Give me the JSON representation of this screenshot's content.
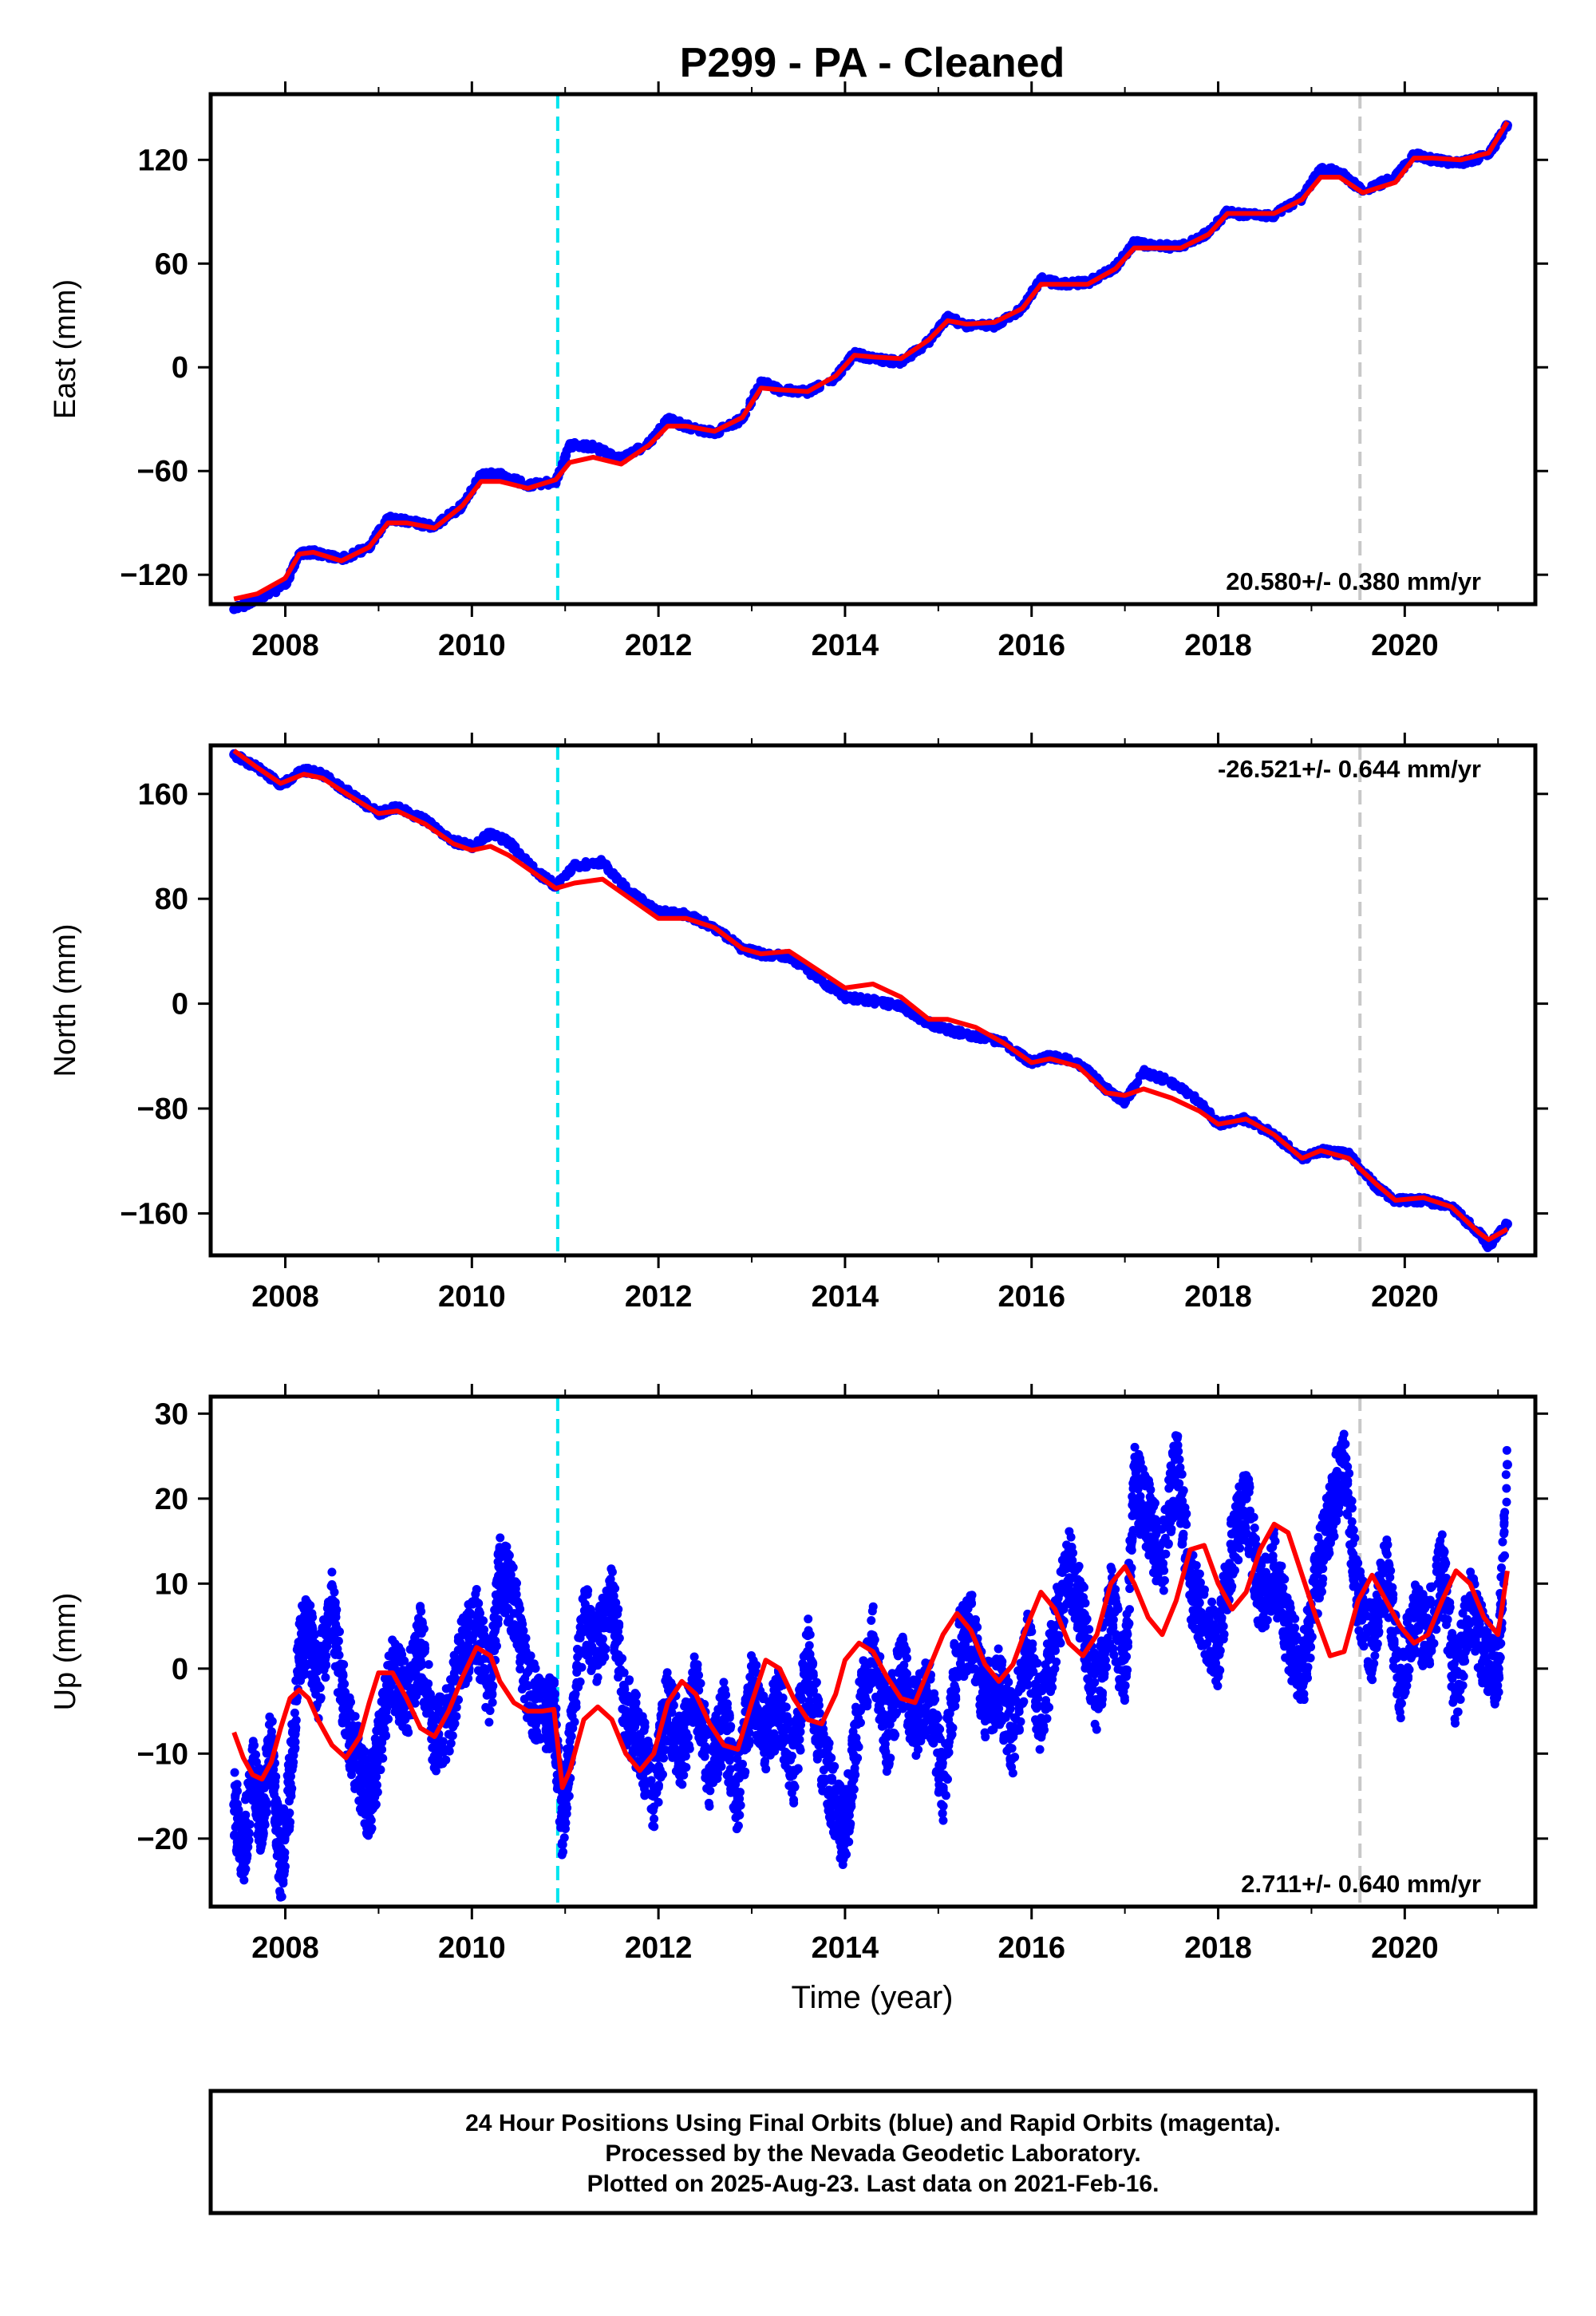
{
  "figure": {
    "title": "P299  - PA - Cleaned",
    "xlabel": "Time (year)",
    "footer": [
      "24 Hour Positions Using Final Orbits (blue) and Rapid Orbits (magenta).",
      "Processed by the Nevada Geodetic Laboratory.",
      "Plotted on 2025-Aug-23. Last data on 2021-Feb-16."
    ]
  },
  "colors": {
    "data": "#0000ff",
    "model": "#ff0000",
    "equipment_change": "#00e5ee",
    "event_line": "#c8c8c8",
    "frame": "#000000"
  },
  "chart_data": [
    {
      "type": "scatter",
      "name": "east",
      "ylabel": "East (mm)",
      "rate_label": "20.580+/- 0.380 mm/yr",
      "rate_position": "bottom-right",
      "xlim": [
        2007.2,
        2021.4
      ],
      "ylim": [
        -137,
        158
      ],
      "xticks": [
        2008,
        2010,
        2012,
        2014,
        2016,
        2018,
        2020
      ],
      "yticks": [
        -120,
        -60,
        0,
        60,
        120
      ],
      "vlines": [
        {
          "x": 2010.92,
          "style": "cyan-dashed"
        },
        {
          "x": 2019.52,
          "style": "gray-dashed"
        }
      ],
      "series": [
        {
          "name": "Final Orbits",
          "kind": "points",
          "x": [
            2007.45,
            2007.7,
            2008.0,
            2008.15,
            2008.3,
            2008.6,
            2008.9,
            2009.1,
            2009.3,
            2009.6,
            2009.9,
            2010.1,
            2010.3,
            2010.6,
            2010.9,
            2011.05,
            2011.3,
            2011.6,
            2011.9,
            2012.1,
            2012.3,
            2012.6,
            2012.9,
            2013.1,
            2013.3,
            2013.6,
            2013.9,
            2014.1,
            2014.3,
            2014.6,
            2014.9,
            2015.1,
            2015.3,
            2015.6,
            2015.9,
            2016.1,
            2016.3,
            2016.6,
            2016.9,
            2017.1,
            2017.3,
            2017.6,
            2017.9,
            2018.1,
            2018.3,
            2018.6,
            2018.9,
            2019.1,
            2019.3,
            2019.55,
            2019.9,
            2020.1,
            2020.3,
            2020.6,
            2020.9,
            2021.1
          ],
          "y": [
            -140,
            -134,
            -126,
            -108,
            -107,
            -111,
            -104,
            -87,
            -89,
            -92,
            -80,
            -62,
            -62,
            -68,
            -66,
            -45,
            -46,
            -53,
            -44,
            -30,
            -34,
            -38,
            -30,
            -8,
            -13,
            -14,
            -6,
            8,
            5,
            3,
            15,
            29,
            24,
            24,
            34,
            51,
            48,
            49,
            58,
            72,
            70,
            70,
            78,
            90,
            88,
            88,
            98,
            115,
            113,
            102,
            110,
            123,
            120,
            118,
            123,
            140
          ]
        },
        {
          "name": "Model",
          "kind": "line",
          "x": [
            2007.45,
            2007.7,
            2008.0,
            2008.15,
            2008.3,
            2008.6,
            2008.9,
            2009.1,
            2009.3,
            2009.6,
            2009.9,
            2010.1,
            2010.3,
            2010.6,
            2010.9,
            2011.05,
            2011.3,
            2011.6,
            2011.9,
            2012.1,
            2012.3,
            2012.6,
            2012.9,
            2013.1,
            2013.3,
            2013.6,
            2013.9,
            2014.1,
            2014.3,
            2014.6,
            2014.9,
            2015.1,
            2015.3,
            2015.6,
            2015.9,
            2016.1,
            2016.3,
            2016.6,
            2016.9,
            2017.1,
            2017.3,
            2017.6,
            2017.9,
            2018.1,
            2018.3,
            2018.6,
            2018.9,
            2019.1,
            2019.3,
            2019.55,
            2019.9,
            2020.1,
            2020.3,
            2020.6,
            2020.9,
            2021.1
          ],
          "y": [
            -134,
            -131,
            -122,
            -108,
            -107,
            -112,
            -104,
            -90,
            -90,
            -93,
            -80,
            -66,
            -66,
            -70,
            -65,
            -55,
            -52,
            -56,
            -45,
            -34,
            -34,
            -37,
            -29,
            -12,
            -13,
            -14,
            -5,
            7,
            6,
            5,
            16,
            27,
            25,
            26,
            34,
            48,
            48,
            48,
            57,
            69,
            69,
            69,
            77,
            89,
            89,
            89,
            97,
            110,
            110,
            101,
            107,
            121,
            121,
            120,
            124,
            142
          ]
        }
      ]
    },
    {
      "type": "scatter",
      "name": "north",
      "ylabel": "North (mm)",
      "rate_label": "-26.521+/- 0.644 mm/yr",
      "rate_position": "top-right",
      "xlim": [
        2007.2,
        2021.4
      ],
      "ylim": [
        -192,
        197
      ],
      "xticks": [
        2008,
        2010,
        2012,
        2014,
        2016,
        2018,
        2020
      ],
      "yticks": [
        -160,
        -80,
        0,
        80,
        160
      ],
      "vlines": [
        {
          "x": 2010.92,
          "style": "cyan-dashed"
        },
        {
          "x": 2019.52,
          "style": "gray-dashed"
        }
      ],
      "series": [
        {
          "name": "Final Orbits",
          "kind": "points",
          "x": [
            2007.45,
            2007.7,
            2007.95,
            2008.2,
            2008.4,
            2008.7,
            2009.0,
            2009.2,
            2009.5,
            2009.8,
            2010.0,
            2010.2,
            2010.4,
            2010.7,
            2010.9,
            2011.1,
            2011.4,
            2011.7,
            2012.0,
            2012.3,
            2012.6,
            2012.9,
            2013.1,
            2013.4,
            2013.7,
            2014.0,
            2014.3,
            2014.6,
            2014.9,
            2015.1,
            2015.4,
            2015.7,
            2016.0,
            2016.2,
            2016.5,
            2016.8,
            2017.0,
            2017.2,
            2017.5,
            2017.8,
            2018.0,
            2018.3,
            2018.6,
            2018.9,
            2019.1,
            2019.4,
            2019.7,
            2019.9,
            2020.2,
            2020.5,
            2020.8,
            2020.9,
            2021.1
          ],
          "y": [
            190,
            180,
            167,
            178,
            175,
            160,
            145,
            150,
            140,
            124,
            120,
            130,
            123,
            100,
            90,
            105,
            108,
            85,
            70,
            68,
            58,
            42,
            38,
            36,
            20,
            5,
            2,
            -2,
            -15,
            -20,
            -25,
            -30,
            -45,
            -40,
            -45,
            -65,
            -75,
            -52,
            -60,
            -75,
            -92,
            -88,
            -100,
            -118,
            -112,
            -115,
            -140,
            -150,
            -150,
            -155,
            -175,
            -185,
            -168
          ]
        },
        {
          "name": "Model",
          "kind": "line",
          "x": [
            2007.45,
            2007.7,
            2007.95,
            2008.2,
            2008.4,
            2008.7,
            2009.0,
            2009.2,
            2009.5,
            2009.8,
            2010.0,
            2010.2,
            2010.4,
            2010.7,
            2010.9,
            2011.1,
            2011.4,
            2011.7,
            2012.0,
            2012.3,
            2012.6,
            2012.9,
            2013.1,
            2013.4,
            2013.7,
            2014.0,
            2014.3,
            2014.6,
            2014.9,
            2015.1,
            2015.4,
            2015.7,
            2016.0,
            2016.2,
            2016.5,
            2016.8,
            2017.0,
            2017.2,
            2017.5,
            2017.8,
            2018.0,
            2018.3,
            2018.6,
            2018.9,
            2019.1,
            2019.4,
            2019.7,
            2019.9,
            2020.2,
            2020.5,
            2020.8,
            2020.9,
            2021.1
          ],
          "y": [
            193,
            180,
            168,
            175,
            172,
            158,
            145,
            147,
            137,
            122,
            117,
            120,
            113,
            98,
            88,
            92,
            95,
            80,
            65,
            65,
            58,
            42,
            38,
            40,
            26,
            12,
            15,
            5,
            -12,
            -12,
            -18,
            -30,
            -45,
            -42,
            -48,
            -68,
            -70,
            -65,
            -72,
            -82,
            -92,
            -88,
            -100,
            -118,
            -112,
            -118,
            -138,
            -150,
            -148,
            -155,
            -175,
            -180,
            -172
          ]
        }
      ]
    },
    {
      "type": "scatter",
      "name": "up",
      "ylabel": "Up (mm)",
      "rate_label": "2.711+/- 0.640 mm/yr",
      "rate_position": "bottom-right",
      "xlim": [
        2007.2,
        2021.4
      ],
      "ylim": [
        -28,
        32
      ],
      "xticks": [
        2008,
        2010,
        2012,
        2014,
        2016,
        2018,
        2020
      ],
      "yticks": [
        -20,
        -10,
        0,
        10,
        20,
        30
      ],
      "vlines": [
        {
          "x": 2010.92,
          "style": "cyan-dashed"
        },
        {
          "x": 2019.52,
          "style": "gray-dashed"
        }
      ],
      "series": [
        {
          "name": "Final Orbits",
          "kind": "points",
          "x": [
            2007.45,
            2007.55,
            2007.65,
            2007.75,
            2007.85,
            2007.95,
            2008.05,
            2008.15,
            2008.25,
            2008.35,
            2008.5,
            2008.65,
            2008.8,
            2008.9,
            2009.0,
            2009.15,
            2009.3,
            2009.45,
            2009.6,
            2009.75,
            2009.9,
            2010.05,
            2010.2,
            2010.3,
            2010.45,
            2010.6,
            2010.75,
            2010.88,
            2010.97,
            2011.05,
            2011.2,
            2011.35,
            2011.5,
            2011.65,
            2011.8,
            2011.95,
            2012.1,
            2012.25,
            2012.4,
            2012.55,
            2012.7,
            2012.85,
            2013.0,
            2013.15,
            2013.3,
            2013.45,
            2013.6,
            2013.75,
            2013.9,
            2014.0,
            2014.15,
            2014.3,
            2014.45,
            2014.6,
            2014.75,
            2014.9,
            2015.05,
            2015.2,
            2015.35,
            2015.5,
            2015.65,
            2015.8,
            2015.95,
            2016.1,
            2016.25,
            2016.4,
            2016.55,
            2016.7,
            2016.85,
            2017.0,
            2017.1,
            2017.25,
            2017.4,
            2017.55,
            2017.7,
            2017.85,
            2018.0,
            2018.15,
            2018.3,
            2018.45,
            2018.6,
            2018.75,
            2018.9,
            2019.05,
            2019.2,
            2019.35,
            2019.5,
            2019.65,
            2019.8,
            2019.95,
            2020.1,
            2020.25,
            2020.4,
            2020.55,
            2020.7,
            2020.85,
            2021.0,
            2021.1
          ],
          "y": [
            -16,
            -22,
            -12,
            -18,
            -8,
            -24,
            -14,
            2,
            5,
            -2,
            7,
            -6,
            -12,
            -16,
            -10,
            0,
            -4,
            3,
            -8,
            -6,
            2,
            5,
            -3,
            12,
            8,
            -2,
            -6,
            -5,
            -18,
            -10,
            6,
            2,
            9,
            -5,
            -8,
            -15,
            -4,
            -10,
            -2,
            -12,
            -6,
            -15,
            -2,
            -8,
            -4,
            -12,
            2,
            -10,
            -16,
            -20,
            -5,
            3,
            -8,
            0,
            -6,
            -3,
            -14,
            2,
            5,
            -4,
            -2,
            -8,
            3,
            -6,
            4,
            12,
            6,
            -4,
            8,
            -2,
            22,
            18,
            12,
            25,
            10,
            6,
            2,
            14,
            20,
            8,
            12,
            4,
            -1,
            10,
            18,
            25,
            8,
            3,
            12,
            -2,
            6,
            4,
            12,
            -3,
            8,
            2,
            -1,
            24
          ]
        },
        {
          "name": "Model",
          "kind": "line",
          "x": [
            2007.45,
            2007.55,
            2007.65,
            2007.75,
            2007.85,
            2007.95,
            2008.05,
            2008.15,
            2008.25,
            2008.35,
            2008.5,
            2008.65,
            2008.8,
            2008.9,
            2009.0,
            2009.15,
            2009.3,
            2009.45,
            2009.6,
            2009.75,
            2009.9,
            2010.05,
            2010.2,
            2010.3,
            2010.45,
            2010.6,
            2010.75,
            2010.88,
            2010.97,
            2011.05,
            2011.2,
            2011.35,
            2011.5,
            2011.65,
            2011.8,
            2011.95,
            2012.1,
            2012.25,
            2012.4,
            2012.55,
            2012.7,
            2012.85,
            2013.0,
            2013.15,
            2013.3,
            2013.45,
            2013.6,
            2013.75,
            2013.9,
            2014.0,
            2014.15,
            2014.3,
            2014.45,
            2014.6,
            2014.75,
            2014.9,
            2015.05,
            2015.2,
            2015.35,
            2015.5,
            2015.65,
            2015.8,
            2015.95,
            2016.1,
            2016.25,
            2016.4,
            2016.55,
            2016.7,
            2016.85,
            2017.0,
            2017.1,
            2017.25,
            2017.4,
            2017.55,
            2017.7,
            2017.85,
            2018.0,
            2018.15,
            2018.3,
            2018.45,
            2018.6,
            2018.75,
            2018.9,
            2019.05,
            2019.2,
            2019.35,
            2019.5,
            2019.65,
            2019.8,
            2019.95,
            2020.1,
            2020.25,
            2020.4,
            2020.55,
            2020.7,
            2020.85,
            2021.0,
            2021.1
          ],
          "y": [
            -7.5,
            -10.5,
            -12.5,
            -13,
            -11,
            -7,
            -3.5,
            -2.5,
            -3.5,
            -6,
            -9,
            -10.5,
            -8,
            -4,
            -0.5,
            -0.5,
            -3.5,
            -7,
            -8,
            -5,
            -1,
            2.5,
            1.5,
            -1.5,
            -4,
            -5,
            -5,
            -4.8,
            -14,
            -12,
            -6,
            -4.5,
            -6,
            -10,
            -12,
            -10,
            -4,
            -1.5,
            -3,
            -6.5,
            -9,
            -9.5,
            -4,
            1,
            0,
            -3.5,
            -6,
            -6.5,
            -3,
            1,
            3,
            2,
            -1,
            -3.5,
            -4,
            0,
            4,
            6.5,
            4.5,
            0.5,
            -1.5,
            0.5,
            5,
            9,
            7,
            3,
            1.5,
            4,
            10,
            12,
            10,
            6,
            4,
            8,
            14,
            14.5,
            10,
            7,
            9,
            14,
            17,
            16,
            11,
            6,
            1.5,
            2,
            8,
            11,
            8,
            5,
            3,
            4,
            8,
            11.5,
            10,
            6,
            4,
            11.5
          ]
        }
      ]
    }
  ]
}
